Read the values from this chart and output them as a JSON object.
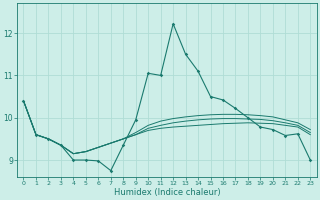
{
  "xlabel": "Humidex (Indice chaleur)",
  "xlim": [
    -0.5,
    23.5
  ],
  "ylim": [
    8.6,
    12.7
  ],
  "yticks": [
    9,
    10,
    11,
    12
  ],
  "xticks": [
    0,
    1,
    2,
    3,
    4,
    5,
    6,
    7,
    8,
    9,
    10,
    11,
    12,
    13,
    14,
    15,
    16,
    17,
    18,
    19,
    20,
    21,
    22,
    23
  ],
  "background_color": "#cdeee8",
  "grid_color": "#b0ddd5",
  "line_color": "#1a7a6e",
  "lines_with_markers": [
    [
      10.4,
      9.6,
      9.5,
      9.35,
      9.0,
      9.0,
      8.98,
      8.75,
      9.35,
      9.95,
      11.05,
      11.0,
      12.22,
      11.5,
      11.1,
      10.5,
      10.42,
      10.22,
      10.0,
      9.78,
      9.72,
      9.58,
      9.62,
      9.0
    ]
  ],
  "lines_plain": [
    [
      10.4,
      9.6,
      9.5,
      9.35,
      9.15,
      9.2,
      9.3,
      9.4,
      9.5,
      9.6,
      9.7,
      9.75,
      9.78,
      9.8,
      9.82,
      9.84,
      9.86,
      9.87,
      9.88,
      9.87,
      9.86,
      9.82,
      9.78,
      9.6
    ],
    [
      10.4,
      9.6,
      9.5,
      9.35,
      9.15,
      9.2,
      9.3,
      9.4,
      9.5,
      9.6,
      9.75,
      9.82,
      9.88,
      9.92,
      9.95,
      9.97,
      9.98,
      9.98,
      9.97,
      9.96,
      9.93,
      9.88,
      9.82,
      9.65
    ],
    [
      10.4,
      9.6,
      9.5,
      9.35,
      9.15,
      9.2,
      9.3,
      9.4,
      9.5,
      9.65,
      9.82,
      9.92,
      9.98,
      10.02,
      10.05,
      10.07,
      10.08,
      10.08,
      10.07,
      10.05,
      10.02,
      9.95,
      9.88,
      9.72
    ]
  ]
}
